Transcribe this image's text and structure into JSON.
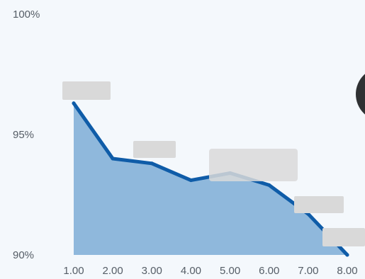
{
  "chart_data": {
    "type": "area",
    "x": [
      1,
      2,
      3,
      4,
      5,
      6,
      7,
      8
    ],
    "x_tick_labels": [
      "1.00",
      "2.00",
      "3.00",
      "4.00",
      "5.00",
      "6.00",
      "7.00",
      "8.00"
    ],
    "y_tick_labels": [
      "100%",
      "95%",
      "90%"
    ],
    "y_ticks": [
      100,
      95,
      90
    ],
    "ylim": [
      90,
      100
    ],
    "xlim": [
      1,
      8
    ],
    "series": [
      {
        "values": [
          96.3,
          94.0,
          93.8,
          93.1,
          93.4,
          92.9,
          91.7,
          90.0
        ]
      }
    ],
    "grid": false,
    "colors": {
      "line": "#0f5ca8",
      "fill": "#8fb8dc",
      "background": "#f4f8fc"
    }
  }
}
